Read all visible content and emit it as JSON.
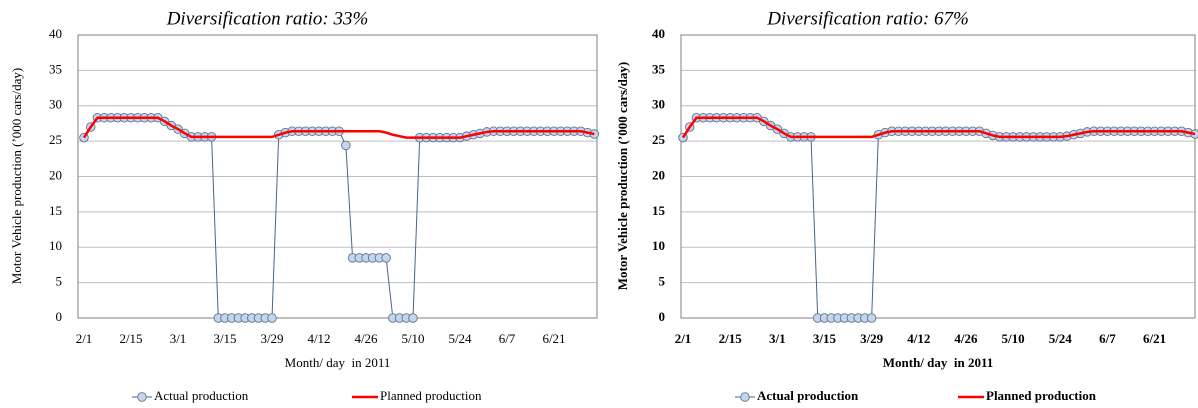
{
  "chart_data": [
    {
      "type": "line",
      "title": "Diversification ratio: 33%",
      "x_label": "Month/ day  in 2011",
      "y_label": "Motor Vehicle production (’000 cars/day)",
      "categories": [
        "2/1",
        null,
        null,
        null,
        null,
        null,
        null,
        "2/15",
        null,
        null,
        null,
        null,
        null,
        null,
        "3/1",
        null,
        null,
        null,
        null,
        null,
        null,
        "3/15",
        null,
        null,
        null,
        null,
        null,
        null,
        "3/29",
        null,
        null,
        null,
        null,
        null,
        null,
        "4/12",
        null,
        null,
        null,
        null,
        null,
        null,
        "4/26",
        null,
        null,
        null,
        null,
        null,
        null,
        "5/10",
        null,
        null,
        null,
        null,
        null,
        null,
        "5/24",
        null,
        null,
        null,
        null,
        null,
        null,
        "6/7",
        null,
        null,
        null,
        null,
        null,
        null,
        "6/21",
        null,
        null,
        null,
        null,
        null,
        null
      ],
      "ylim": [
        0,
        40
      ],
      "yticks": [
        0,
        5,
        10,
        15,
        20,
        25,
        30,
        35,
        40
      ],
      "grid": true,
      "series": [
        {
          "name": "Actual production",
          "color": "#4a6583",
          "marker": true,
          "values": [
            25.5,
            27,
            28.3,
            28.3,
            28.3,
            28.3,
            28.3,
            28.3,
            28.3,
            28.3,
            28.3,
            28.3,
            27.8,
            27.2,
            26.7,
            26.1,
            25.6,
            25.6,
            25.6,
            25.6,
            0,
            0,
            0,
            0,
            0,
            0,
            0,
            0,
            0,
            25.9,
            26.2,
            26.4,
            26.4,
            26.4,
            26.4,
            26.4,
            26.4,
            26.4,
            26.4,
            24.4,
            8.5,
            8.5,
            8.5,
            8.5,
            8.5,
            8.5,
            0,
            0,
            0,
            0,
            25.5,
            25.5,
            25.5,
            25.5,
            25.5,
            25.5,
            25.5,
            25.7,
            25.9,
            26.1,
            26.3,
            26.4,
            26.4,
            26.4,
            26.4,
            26.4,
            26.4,
            26.4,
            26.4,
            26.4,
            26.4,
            26.4,
            26.4,
            26.4,
            26.4,
            26.2,
            26.0
          ]
        },
        {
          "name": "Planned production",
          "color": "#ff0000",
          "marker": false,
          "values": [
            25.5,
            27,
            28.3,
            28.3,
            28.3,
            28.3,
            28.3,
            28.3,
            28.3,
            28.3,
            28.3,
            28.3,
            27.8,
            27.2,
            26.7,
            26.1,
            25.6,
            25.6,
            25.6,
            25.6,
            25.6,
            25.6,
            25.6,
            25.6,
            25.6,
            25.6,
            25.6,
            25.6,
            25.6,
            25.9,
            26.2,
            26.4,
            26.4,
            26.4,
            26.4,
            26.4,
            26.4,
            26.4,
            26.4,
            26.4,
            26.4,
            26.4,
            26.4,
            26.4,
            26.4,
            26.2,
            25.9,
            25.7,
            25.5,
            25.5,
            25.5,
            25.5,
            25.5,
            25.5,
            25.5,
            25.5,
            25.5,
            25.7,
            25.9,
            26.1,
            26.3,
            26.4,
            26.4,
            26.4,
            26.4,
            26.4,
            26.4,
            26.4,
            26.4,
            26.4,
            26.4,
            26.4,
            26.4,
            26.4,
            26.4,
            26.2,
            26.0
          ]
        }
      ]
    },
    {
      "type": "line",
      "title": "Diversification ratio: 67%",
      "x_label": "Month/ day  in 2011",
      "y_label": "Motor Vehicle production (’000 cars/day)",
      "categories": [
        "2/1",
        null,
        null,
        null,
        null,
        null,
        null,
        "2/15",
        null,
        null,
        null,
        null,
        null,
        null,
        "3/1",
        null,
        null,
        null,
        null,
        null,
        null,
        "3/15",
        null,
        null,
        null,
        null,
        null,
        null,
        "3/29",
        null,
        null,
        null,
        null,
        null,
        null,
        "4/12",
        null,
        null,
        null,
        null,
        null,
        null,
        "4/26",
        null,
        null,
        null,
        null,
        null,
        null,
        "5/10",
        null,
        null,
        null,
        null,
        null,
        null,
        "5/24",
        null,
        null,
        null,
        null,
        null,
        null,
        "6/7",
        null,
        null,
        null,
        null,
        null,
        null,
        "6/21",
        null,
        null,
        null,
        null,
        null,
        null
      ],
      "ylim": [
        0,
        40
      ],
      "yticks": [
        0,
        5,
        10,
        15,
        20,
        25,
        30,
        35,
        40
      ],
      "grid": true,
      "series": [
        {
          "name": "Actual production",
          "color": "#4a6583",
          "marker": true,
          "values": [
            25.5,
            27,
            28.3,
            28.3,
            28.3,
            28.3,
            28.3,
            28.3,
            28.3,
            28.3,
            28.3,
            28.3,
            27.8,
            27.2,
            26.7,
            26.1,
            25.6,
            25.6,
            25.6,
            25.6,
            0,
            0,
            0,
            0,
            0,
            0,
            0,
            0,
            0,
            25.9,
            26.2,
            26.4,
            26.4,
            26.4,
            26.4,
            26.4,
            26.4,
            26.4,
            26.4,
            26.4,
            26.4,
            26.4,
            26.4,
            26.4,
            26.4,
            26.1,
            25.8,
            25.6,
            25.6,
            25.6,
            25.6,
            25.6,
            25.6,
            25.6,
            25.6,
            25.6,
            25.6,
            25.7,
            25.9,
            26.1,
            26.3,
            26.4,
            26.4,
            26.4,
            26.4,
            26.4,
            26.4,
            26.4,
            26.4,
            26.4,
            26.4,
            26.4,
            26.4,
            26.4,
            26.4,
            26.2,
            26.0
          ]
        },
        {
          "name": "Planned production",
          "color": "#ff0000",
          "marker": false,
          "values": [
            25.5,
            27,
            28.3,
            28.3,
            28.3,
            28.3,
            28.3,
            28.3,
            28.3,
            28.3,
            28.3,
            28.3,
            27.8,
            27.2,
            26.7,
            26.1,
            25.6,
            25.6,
            25.6,
            25.6,
            25.6,
            25.6,
            25.6,
            25.6,
            25.6,
            25.6,
            25.6,
            25.6,
            25.6,
            25.9,
            26.2,
            26.4,
            26.4,
            26.4,
            26.4,
            26.4,
            26.4,
            26.4,
            26.4,
            26.4,
            26.4,
            26.4,
            26.4,
            26.4,
            26.4,
            26.1,
            25.8,
            25.6,
            25.6,
            25.6,
            25.6,
            25.6,
            25.6,
            25.6,
            25.6,
            25.6,
            25.6,
            25.7,
            25.9,
            26.1,
            26.3,
            26.4,
            26.4,
            26.4,
            26.4,
            26.4,
            26.4,
            26.4,
            26.4,
            26.4,
            26.4,
            26.4,
            26.4,
            26.4,
            26.4,
            26.2,
            26.0
          ]
        }
      ]
    }
  ]
}
